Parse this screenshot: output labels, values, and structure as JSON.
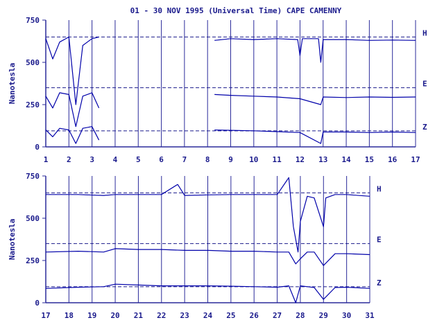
{
  "title": "01 - 30 NOV 1995 (Universal Time) CAPE CAMENNY",
  "colors": {
    "ink": "#1a1a8c",
    "trace": "#0000aa",
    "frame": "#2a2a9a"
  },
  "chart_data": [
    {
      "type": "line",
      "panel": "top",
      "xlabel": "",
      "ylabel": "Nanotesla",
      "xlim": [
        1,
        17
      ],
      "ylim": [
        0,
        750
      ],
      "x_ticks": [
        "1",
        "2",
        "3",
        "4",
        "5",
        "6",
        "7",
        "8",
        "9",
        "10",
        "11",
        "12",
        "13",
        "14",
        "15",
        "16",
        "17"
      ],
      "y_ticks": [
        "0",
        "250",
        "500",
        "750"
      ],
      "reference_lines": [
        {
          "label": "H",
          "value": 650
        },
        {
          "label": "E",
          "value": 350
        },
        {
          "label": "Z",
          "value": 95
        }
      ],
      "series": [
        {
          "name": "H",
          "x": [
            1.0,
            1.3,
            1.6,
            2.0,
            2.3,
            2.6,
            3.0,
            3.3,
            8.3,
            9,
            10,
            11,
            11.9,
            12.0,
            12.1,
            12.8,
            12.9,
            13,
            14,
            15,
            16,
            17
          ],
          "y": [
            640,
            520,
            620,
            650,
            250,
            600,
            640,
            650,
            630,
            640,
            635,
            640,
            635,
            540,
            640,
            640,
            500,
            635,
            635,
            630,
            632,
            630
          ]
        },
        {
          "name": "E",
          "x": [
            1.0,
            1.3,
            1.6,
            2.0,
            2.3,
            2.6,
            3.0,
            3.3,
            8.3,
            9,
            10,
            11,
            12,
            12.9,
            13,
            14,
            15,
            16,
            17
          ],
          "y": [
            300,
            230,
            320,
            310,
            120,
            300,
            320,
            230,
            310,
            305,
            300,
            295,
            285,
            250,
            295,
            292,
            295,
            293,
            295
          ]
        },
        {
          "name": "Z",
          "x": [
            1.0,
            1.3,
            1.6,
            2.0,
            2.3,
            2.6,
            3.0,
            3.3,
            8.3,
            9,
            10,
            11,
            12,
            12.9,
            13,
            14,
            15,
            16,
            17
          ],
          "y": [
            100,
            60,
            110,
            100,
            20,
            110,
            120,
            40,
            100,
            98,
            95,
            90,
            85,
            20,
            88,
            88,
            85,
            88,
            85
          ]
        }
      ]
    },
    {
      "type": "line",
      "panel": "bottom",
      "xlabel": "",
      "ylabel": "Nanotesla",
      "xlim": [
        17,
        31
      ],
      "ylim": [
        0,
        750
      ],
      "x_ticks": [
        "17",
        "18",
        "19",
        "20",
        "21",
        "22",
        "23",
        "24",
        "25",
        "26",
        "27",
        "28",
        "29",
        "30",
        "31"
      ],
      "y_ticks": [
        "0",
        "250",
        "500",
        "750"
      ],
      "reference_lines": [
        {
          "label": "H",
          "value": 650
        },
        {
          "label": "E",
          "value": 350
        },
        {
          "label": "Z",
          "value": 95
        }
      ],
      "series": [
        {
          "name": "H",
          "x": [
            17,
            18.4,
            19.5,
            20,
            21,
            22,
            22.7,
            23,
            24,
            25,
            26,
            27,
            27.5,
            27.7,
            27.9,
            28.0,
            28.3,
            28.6,
            29,
            29.1,
            29.5,
            30,
            31
          ],
          "y": [
            640,
            640,
            635,
            640,
            640,
            640,
            700,
            635,
            638,
            640,
            640,
            640,
            740,
            450,
            300,
            480,
            630,
            620,
            450,
            620,
            640,
            640,
            630
          ]
        },
        {
          "name": "E",
          "x": [
            17,
            18.4,
            19.5,
            20,
            21,
            22,
            23,
            24,
            25,
            26,
            27,
            27.5,
            27.8,
            28.0,
            28.3,
            28.6,
            29,
            29.5,
            30,
            31
          ],
          "y": [
            300,
            305,
            300,
            320,
            315,
            315,
            310,
            310,
            305,
            305,
            300,
            300,
            230,
            260,
            300,
            300,
            220,
            290,
            290,
            285
          ]
        },
        {
          "name": "Z",
          "x": [
            17,
            18.4,
            19.5,
            20,
            21,
            22,
            23,
            24,
            25,
            26,
            27,
            27.5,
            27.8,
            28.0,
            28.3,
            28.6,
            29,
            29.5,
            30,
            31
          ],
          "y": [
            85,
            92,
            95,
            110,
            105,
            100,
            100,
            100,
            98,
            95,
            92,
            100,
            0,
            100,
            95,
            90,
            20,
            90,
            92,
            85
          ]
        }
      ]
    }
  ]
}
